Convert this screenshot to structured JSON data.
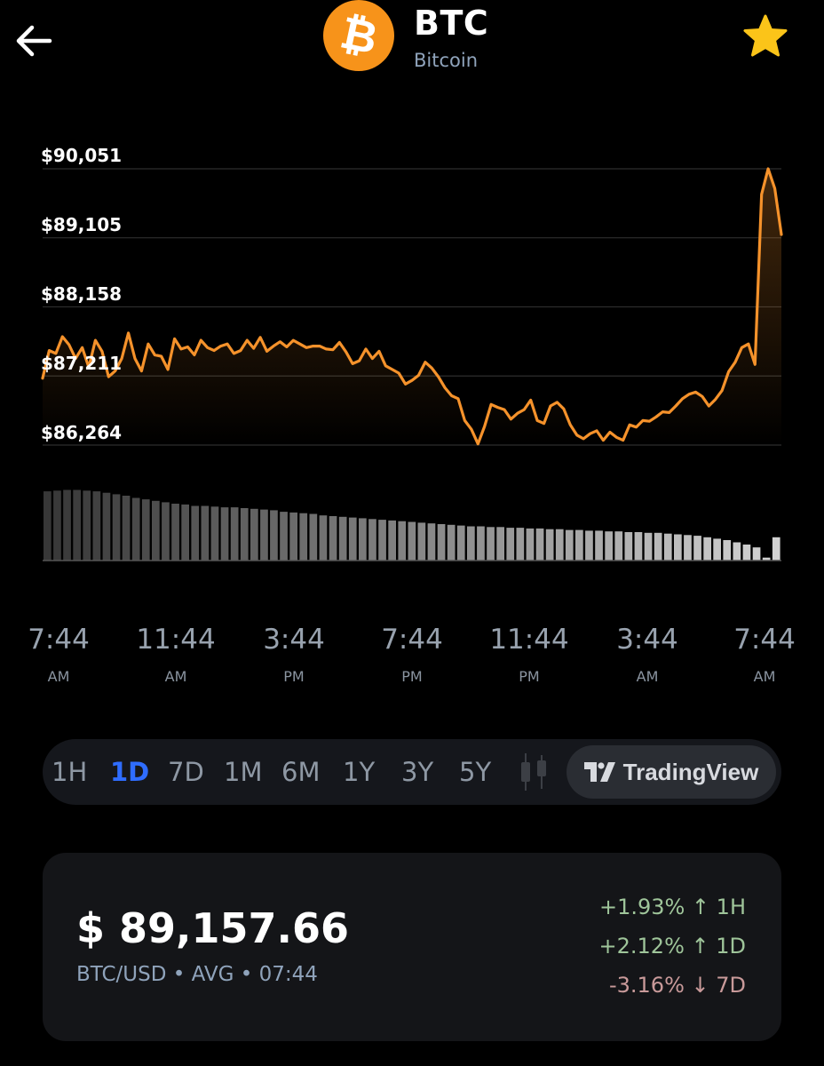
{
  "header": {
    "ticker": "BTC",
    "name": "Bitcoin",
    "logo_glyph": "₿",
    "logo_color": "#f7931a",
    "back_icon": "arrow-left-icon",
    "favorite_icon": "star-icon",
    "star_color": "#fbc419"
  },
  "chart_data": {
    "type": "line",
    "y_tick_labels": [
      "$90,051",
      "$89,105",
      "$88,158",
      "$87,211",
      "$86,264"
    ],
    "y_ticks": [
      90051,
      89105,
      88158,
      87211,
      86264
    ],
    "ylim": [
      86264,
      90051
    ],
    "x_tick_labels": [
      {
        "time": "7:44",
        "ampm": "AM"
      },
      {
        "time": "11:44",
        "ampm": "AM"
      },
      {
        "time": "3:44",
        "ampm": "PM"
      },
      {
        "time": "7:44",
        "ampm": "PM"
      },
      {
        "time": "11:44",
        "ampm": "PM"
      },
      {
        "time": "3:44",
        "ampm": "AM"
      },
      {
        "time": "7:44",
        "ampm": "AM"
      }
    ],
    "line_color": "#f5922b",
    "series": [
      {
        "values": [
          87180,
          87560,
          87520,
          87750,
          87640,
          87450,
          87600,
          87330,
          87700,
          87550,
          87200,
          87280,
          87450,
          87800,
          87450,
          87280,
          87650,
          87500,
          87480,
          87300,
          87720,
          87580,
          87610,
          87500,
          87700,
          87600,
          87560,
          87620,
          87650,
          87520,
          87560,
          87700,
          87590,
          87740,
          87550,
          87620,
          87680,
          87610,
          87700,
          87650,
          87600,
          87620,
          87620,
          87580,
          87570,
          87670,
          87540,
          87380,
          87420,
          87580,
          87450,
          87550,
          87350,
          87300,
          87250,
          87100,
          87150,
          87220,
          87400,
          87320,
          87200,
          87050,
          86940,
          86900,
          86600,
          86480,
          86280,
          86520,
          86820,
          86780,
          86750,
          86620,
          86700,
          86750,
          86880,
          86600,
          86560,
          86800,
          86850,
          86760,
          86540,
          86400,
          86350,
          86420,
          86460,
          86330,
          86440,
          86370,
          86330,
          86540,
          86510,
          86600,
          86590,
          86650,
          86720,
          86710,
          86800,
          86900,
          86960,
          86990,
          86930,
          86800,
          86890,
          87010,
          87270,
          87400,
          87600,
          87650,
          87370,
          89700,
          90051,
          89780,
          89150
        ]
      }
    ],
    "volume": [
      0.95,
      0.96,
      0.97,
      0.97,
      0.96,
      0.95,
      0.93,
      0.91,
      0.89,
      0.86,
      0.84,
      0.82,
      0.8,
      0.78,
      0.77,
      0.75,
      0.75,
      0.74,
      0.73,
      0.73,
      0.72,
      0.71,
      0.7,
      0.69,
      0.67,
      0.66,
      0.65,
      0.64,
      0.62,
      0.61,
      0.6,
      0.59,
      0.58,
      0.57,
      0.56,
      0.55,
      0.54,
      0.53,
      0.52,
      0.51,
      0.5,
      0.49,
      0.48,
      0.47,
      0.47,
      0.46,
      0.46,
      0.45,
      0.45,
      0.44,
      0.44,
      0.43,
      0.43,
      0.42,
      0.42,
      0.41,
      0.41,
      0.4,
      0.4,
      0.39,
      0.39,
      0.38,
      0.38,
      0.37,
      0.36,
      0.35,
      0.34,
      0.32,
      0.3,
      0.28,
      0.25,
      0.22,
      0.18,
      0.04,
      0.32
    ],
    "grid": true
  },
  "ranges": {
    "items": [
      "1H",
      "1D",
      "7D",
      "1M",
      "6M",
      "1Y",
      "3Y",
      "5Y"
    ],
    "active": "1D",
    "candle_icon": "candlestick-icon",
    "tradingview_label": "TradingView",
    "tradingview_icon": "tradingview-logo-icon"
  },
  "price_card": {
    "price": "$ 89,157.66",
    "pair": "BTC/USD • AVG • 07:44",
    "changes": [
      {
        "text": "+1.93% ↑ 1H",
        "direction": "up"
      },
      {
        "text": "+2.12% ↑ 1D",
        "direction": "up"
      },
      {
        "text": "-3.16% ↓ 7D",
        "direction": "down"
      }
    ]
  }
}
